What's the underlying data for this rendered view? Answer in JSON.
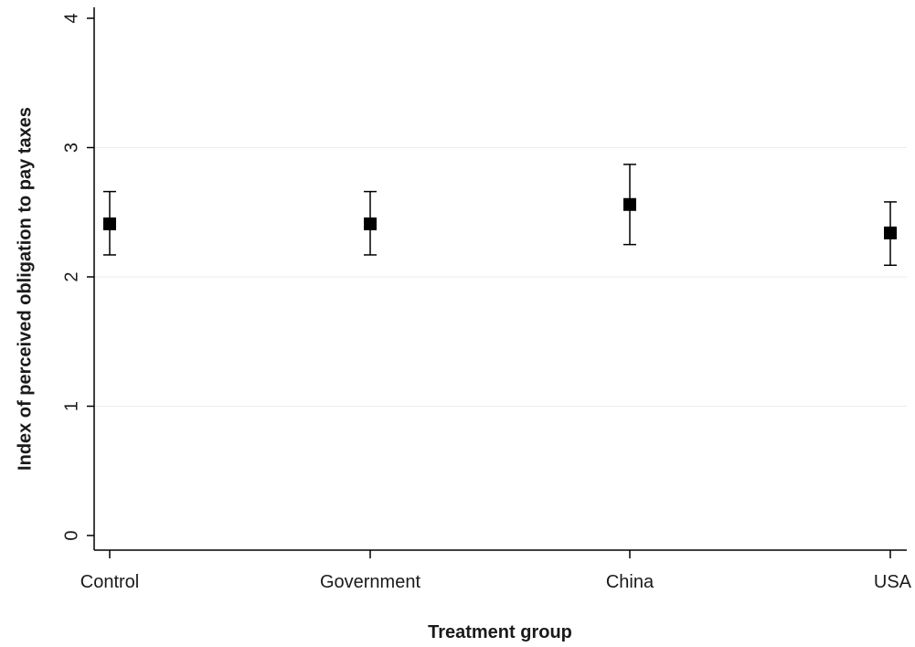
{
  "chart_data": {
    "type": "scatter",
    "categories": [
      "Control",
      "Government",
      "China",
      "USA"
    ],
    "series": [
      {
        "values": [
          2.41,
          2.41,
          2.56,
          2.34
        ],
        "ci_lower": [
          2.17,
          2.17,
          2.25,
          2.09
        ],
        "ci_upper": [
          2.66,
          2.66,
          2.87,
          2.58
        ]
      }
    ],
    "xlabel": "Treatment group",
    "ylabel": "Index of perceived obligation to pay taxes",
    "ylim": [
      0,
      4
    ],
    "yticks": [
      "0",
      "1",
      "2",
      "3",
      "4"
    ],
    "grid": true,
    "colors": {
      "marker": "#000000",
      "axis": "#000000",
      "grid": "#e6eef1"
    }
  }
}
